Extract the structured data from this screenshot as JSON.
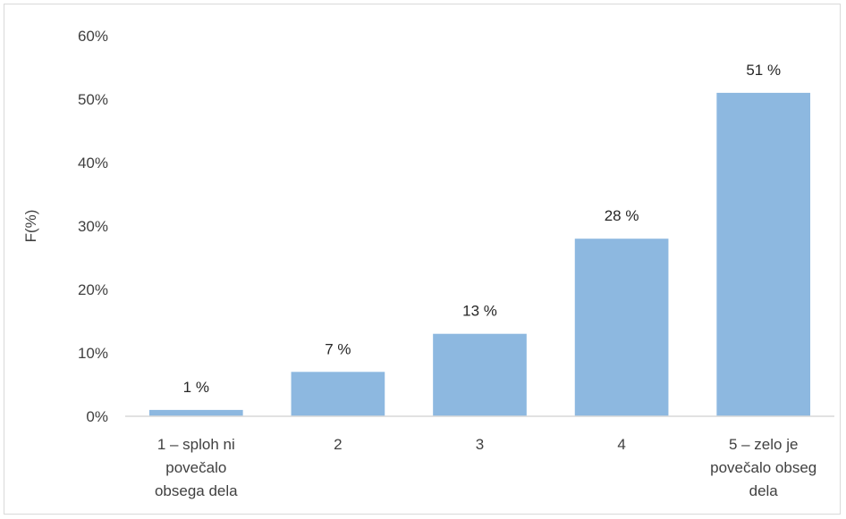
{
  "chart_data": {
    "type": "bar",
    "categories": [
      [
        "1 – sploh ni",
        "povečalo",
        "obsega dela"
      ],
      [
        "2"
      ],
      [
        "3"
      ],
      [
        "4"
      ],
      [
        "5 – zelo je",
        "povečalo obseg",
        "dela"
      ]
    ],
    "values": [
      1,
      7,
      13,
      28,
      51
    ],
    "data_labels": [
      "1 %",
      "7 %",
      "13 %",
      "28 %",
      "51 %"
    ],
    "ylabel": "F(%)",
    "ylim": [
      0,
      60
    ],
    "yticks": [
      0,
      10,
      20,
      30,
      40,
      50,
      60
    ],
    "ytick_labels": [
      "0%",
      "10%",
      "20%",
      "30%",
      "40%",
      "50%",
      "60%"
    ],
    "grid": false,
    "legend": "none",
    "colors": {
      "bar": "#8db8e0",
      "axis": "#d9d9d9",
      "text": "#404040"
    }
  }
}
